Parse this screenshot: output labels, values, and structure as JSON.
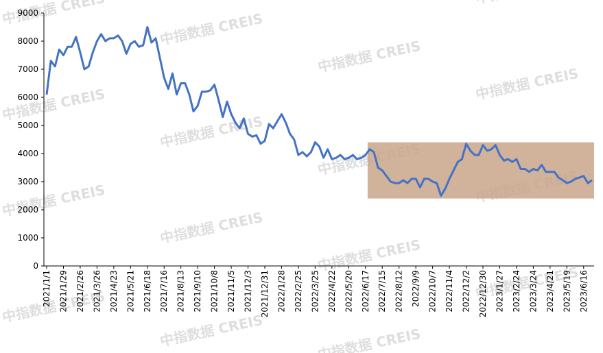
{
  "chart_data": {
    "type": "line",
    "watermark": "中指数据 CREIS",
    "categories": [
      "2021/1/1",
      null,
      null,
      null,
      "2021/1/29",
      null,
      null,
      null,
      "2021/2/26",
      null,
      null,
      null,
      "2021/3/26",
      null,
      null,
      null,
      "2021/4/23",
      null,
      null,
      null,
      "2021/5/21",
      null,
      null,
      null,
      "2021/6/18",
      null,
      null,
      null,
      "2021/7/16",
      null,
      null,
      null,
      "2021/8/13",
      null,
      null,
      null,
      "2021/9/10",
      null,
      null,
      null,
      "2021/10/8",
      null,
      null,
      null,
      "2021/11/5",
      null,
      null,
      null,
      "2021/12/3",
      null,
      null,
      null,
      "2021/12/31",
      null,
      null,
      null,
      "2022/1/28",
      null,
      null,
      null,
      "2022/2/25",
      null,
      null,
      null,
      "2022/3/25",
      null,
      null,
      null,
      "2022/4/22",
      null,
      null,
      null,
      "2022/5/20",
      null,
      null,
      null,
      "2022/6/17",
      null,
      null,
      null,
      "2022/7/15",
      null,
      null,
      null,
      "2022/8/12",
      null,
      null,
      null,
      "2022/9/9",
      null,
      null,
      null,
      "2022/10/7",
      null,
      null,
      null,
      "2022/11/4",
      null,
      null,
      null,
      "2022/12/2",
      null,
      null,
      null,
      "2022/12/30",
      null,
      null,
      null,
      "2023/1/27",
      null,
      null,
      null,
      "2023/2/24",
      null,
      null,
      null,
      "2023/3/24",
      null,
      null,
      null,
      "2023/4/21",
      null,
      null,
      null,
      "2023/5/19",
      null,
      null,
      null,
      "2023/6/16",
      null,
      null
    ],
    "values": [
      6100,
      7300,
      7100,
      7700,
      7500,
      7800,
      7800,
      8150,
      7600,
      7000,
      7100,
      7600,
      8000,
      8250,
      8000,
      8100,
      8100,
      8200,
      8000,
      7550,
      7900,
      8000,
      7800,
      7850,
      8500,
      7950,
      8100,
      7400,
      6700,
      6300,
      6850,
      6100,
      6500,
      6500,
      6100,
      5500,
      5700,
      6200,
      6200,
      6250,
      6450,
      5900,
      5300,
      5850,
      5400,
      5100,
      4900,
      5250,
      4700,
      4600,
      4650,
      4350,
      4450,
      5050,
      4900,
      5150,
      5400,
      5100,
      4700,
      4500,
      3950,
      4050,
      3900,
      4050,
      4400,
      4250,
      3850,
      4150,
      3800,
      3850,
      3950,
      3800,
      3850,
      3950,
      3800,
      3850,
      3950,
      4150,
      4050,
      3500,
      3400,
      3200,
      3000,
      2950,
      2950,
      3050,
      2950,
      3100,
      3100,
      2800,
      3100,
      3100,
      3000,
      2950,
      2500,
      2750,
      3100,
      3400,
      3700,
      3800,
      4350,
      4100,
      3950,
      3950,
      4300,
      4100,
      4150,
      4300,
      3950,
      3750,
      3800,
      3700,
      3800,
      3450,
      3450,
      3350,
      3450,
      3400,
      3600,
      3350,
      3350,
      3350,
      3150,
      3050,
      2950,
      3000,
      3100,
      3150,
      3200,
      2950,
      3050
    ],
    "color": "#4472c4",
    "ylim": [
      0,
      9000
    ],
    "yticks": [
      0,
      1000,
      2000,
      3000,
      4000,
      5000,
      6000,
      7000,
      8000,
      9000
    ],
    "grid": false,
    "highlight": {
      "start_index": 77,
      "end_index": 130,
      "ylim": [
        2400,
        4400
      ],
      "color": "#c9a48a"
    }
  }
}
